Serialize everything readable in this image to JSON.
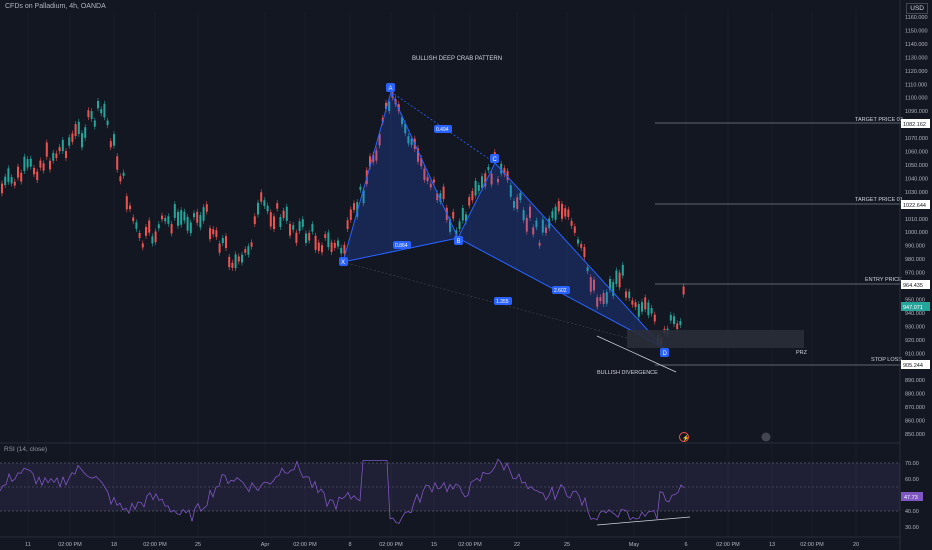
{
  "header": {
    "title": "CFDs on Palladium, 4h, OANDA",
    "currency": "USD"
  },
  "annotations": {
    "pattern_title": "BULLISH DEEP CRAB PATTERN",
    "divergence": "BULLISH DIVERGENCE",
    "points": {
      "X": "X",
      "A": "A",
      "B": "B",
      "C": "C",
      "D": "D"
    },
    "ratios": {
      "xa_b": "0.864",
      "ab_c": "0.494",
      "bc_d": "2.602",
      "xa_d": "1.355"
    },
    "target2": "TARGET PRICE 02",
    "target1": "TARGET PRICE 01",
    "entry": "ENTRY PRICE",
    "stop": "STOP LOSS",
    "prz": "PRZ"
  },
  "price_tags": {
    "target2": "1082.162",
    "target1": "1022.644",
    "entry": "964.435",
    "current": "947.071",
    "stop": "905.244"
  },
  "price_axis": [
    "1160.000",
    "1150.000",
    "1140.000",
    "1130.000",
    "1120.000",
    "1110.000",
    "1100.000",
    "1090.000",
    "1080.000",
    "1070.000",
    "1060.000",
    "1050.000",
    "1040.000",
    "1030.000",
    "1020.000",
    "1010.000",
    "1000.000",
    "990.000",
    "980.000",
    "970.000",
    "960.000",
    "950.000",
    "940.000",
    "930.000",
    "920.000",
    "910.000",
    "900.000",
    "890.000",
    "880.000",
    "870.000",
    "860.000",
    "850.000"
  ],
  "rsi": {
    "title": "RSI (14, close)",
    "value": "47.73",
    "axis": [
      "70.00",
      "60.00",
      "50.00",
      "40.00",
      "30.00"
    ]
  },
  "time_axis": [
    "11",
    "02:00 PM",
    "18",
    "02:00 PM",
    "25",
    "Apr",
    "02:00 PM",
    "8",
    "02:00 PM",
    "15",
    "02:00 PM",
    "22",
    "25",
    "May",
    "6",
    "02:00 PM",
    "13",
    "02:00 PM",
    "20"
  ],
  "colors": {
    "bg": "#131722",
    "up": "#26a69a",
    "down": "#ef5350",
    "pattern": "#2962ff",
    "rsi": "#7e57c2"
  }
}
